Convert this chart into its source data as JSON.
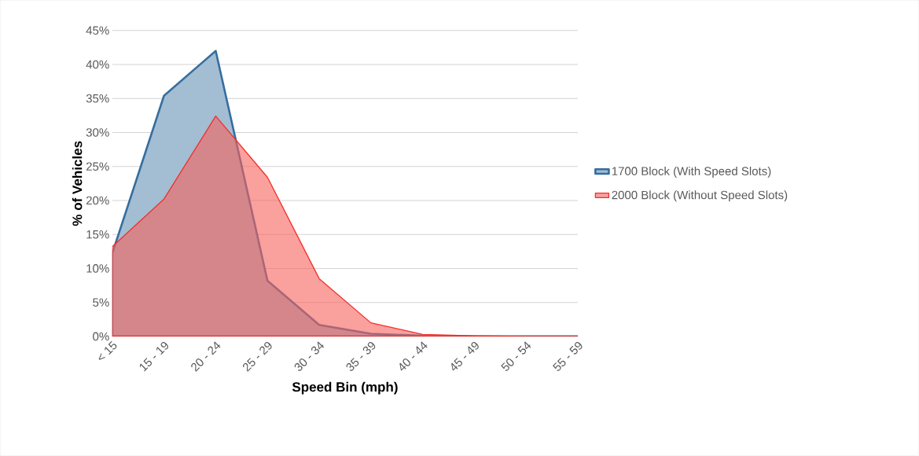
{
  "chart_data": {
    "type": "area",
    "xlabel": "Speed Bin (mph)",
    "ylabel": "% of Vehicles",
    "categories": [
      "< 15",
      "15 - 19",
      "20 - 24",
      "25 - 29",
      "30 - 34",
      "35 - 39",
      "40 - 44",
      "45 - 49",
      "50 - 54",
      "55 - 59"
    ],
    "series": [
      {
        "name": "1700 Block (With Speed Slots)",
        "color": "#a3bdd3",
        "values": [
          12.2,
          35.4,
          42.0,
          8.2,
          1.7,
          0.4,
          0.1,
          0,
          0,
          0
        ]
      },
      {
        "name": "2000 Block (Without Speed Slots)",
        "color": "#faa09d",
        "values": [
          13.2,
          20.2,
          32.4,
          23.4,
          8.5,
          2.0,
          0.3,
          0.1,
          0,
          0
        ]
      }
    ],
    "ylim": [
      0,
      45
    ],
    "yticks": [
      {
        "value": 0,
        "label": "0%"
      },
      {
        "value": 5,
        "label": "5%"
      },
      {
        "value": 10,
        "label": "10%"
      },
      {
        "value": 15,
        "label": "15%"
      },
      {
        "value": 20,
        "label": "20%"
      },
      {
        "value": 25,
        "label": "25%"
      },
      {
        "value": 30,
        "label": "30%"
      },
      {
        "value": 35,
        "label": "35%"
      },
      {
        "value": 40,
        "label": "40%"
      },
      {
        "value": 45,
        "label": "45%"
      }
    ],
    "grid": "y",
    "legend": "right"
  }
}
